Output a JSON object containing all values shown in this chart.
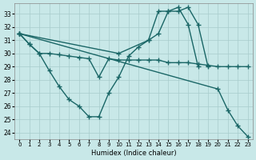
{
  "bg_color": "#c8e8e8",
  "line_color": "#1a6666",
  "xlabel": "Humidex (Indice chaleur)",
  "xlim": [
    -0.5,
    23.5
  ],
  "ylim": [
    23.5,
    33.8
  ],
  "yticks": [
    24,
    25,
    26,
    27,
    28,
    29,
    30,
    31,
    32,
    33
  ],
  "xticks": [
    0,
    1,
    2,
    3,
    4,
    5,
    6,
    7,
    8,
    9,
    10,
    11,
    12,
    13,
    14,
    15,
    16,
    17,
    18,
    19,
    20,
    21,
    22,
    23
  ],
  "curve_flat_x": [
    0,
    1,
    2,
    3,
    4,
    5,
    6,
    7,
    8,
    9,
    10,
    11,
    12,
    13,
    14,
    15,
    16,
    17,
    18,
    19,
    20,
    21,
    22,
    23
  ],
  "curve_flat_y": [
    31.5,
    30.7,
    30.0,
    30.0,
    29.9,
    29.8,
    29.7,
    29.6,
    28.2,
    29.6,
    29.5,
    29.5,
    29.5,
    29.5,
    29.5,
    29.3,
    29.3,
    29.3,
    29.2,
    29.1,
    29.0,
    29.0,
    29.0,
    29.0
  ],
  "curve_valley_x": [
    0,
    1,
    2,
    3,
    4,
    5,
    6,
    7,
    8,
    9,
    10,
    11,
    12,
    13,
    14,
    15,
    16,
    17,
    18
  ],
  "curve_valley_y": [
    31.5,
    30.7,
    30.0,
    28.7,
    27.5,
    26.5,
    26.0,
    25.2,
    25.2,
    27.0,
    28.2,
    29.8,
    30.5,
    31.0,
    33.2,
    33.2,
    33.5,
    32.2,
    29.0
  ],
  "curve_peak_x": [
    0,
    10,
    13,
    14,
    15,
    16,
    17,
    18,
    19
  ],
  "curve_peak_y": [
    31.5,
    30.0,
    31.0,
    31.5,
    33.2,
    33.2,
    33.5,
    32.2,
    29.0
  ],
  "curve_diag_x": [
    0,
    20,
    21,
    22,
    23
  ],
  "curve_diag_y": [
    31.5,
    27.3,
    25.7,
    24.5,
    23.7
  ]
}
